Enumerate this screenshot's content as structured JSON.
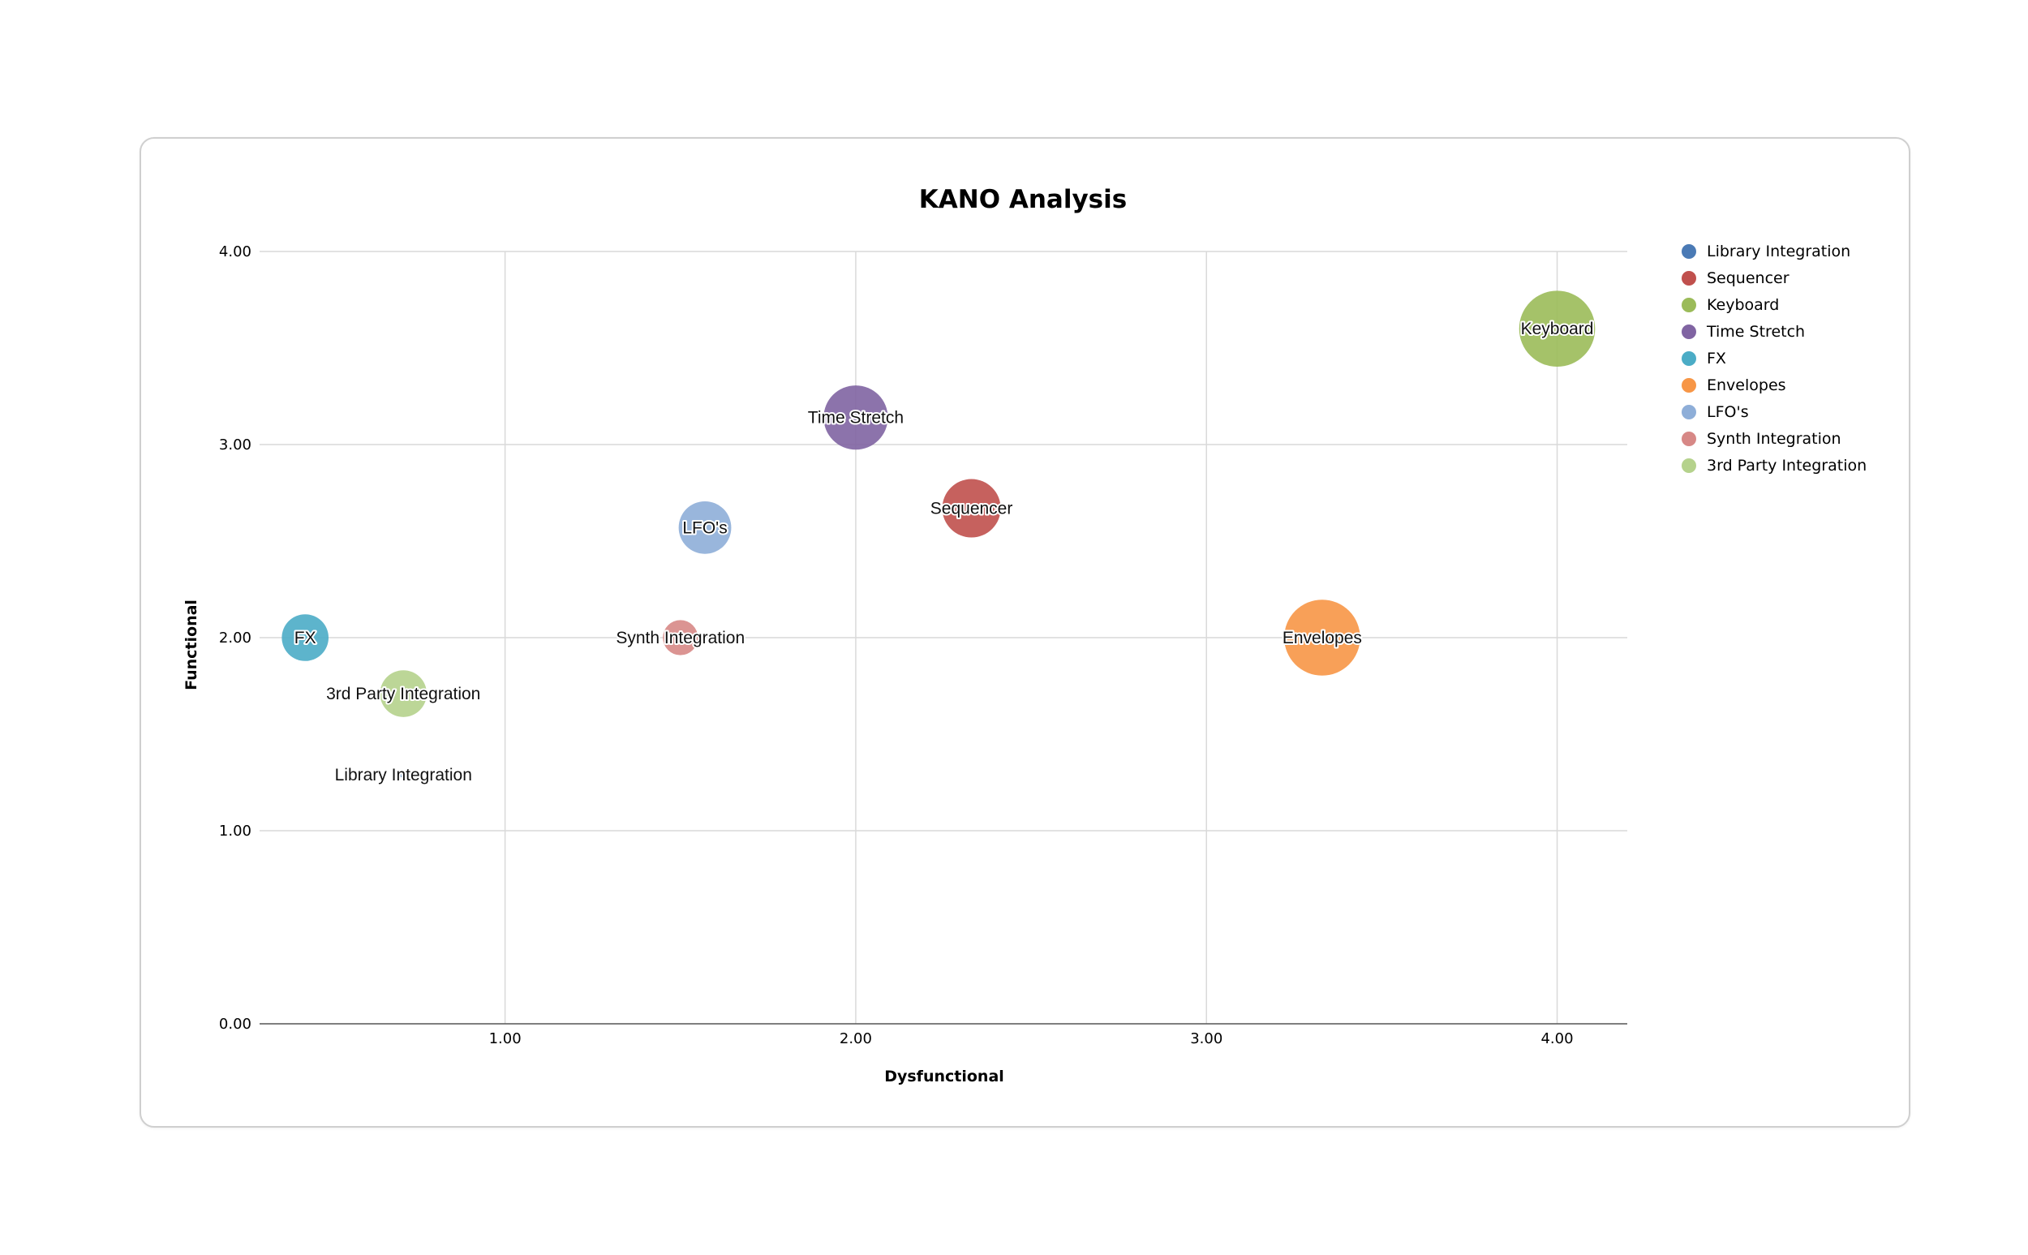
{
  "chart_data": {
    "type": "scatter",
    "title": "KANO Analysis",
    "xlabel": "Dysfunctional",
    "ylabel": "Functional",
    "xlim": [
      0.3,
      4.2
    ],
    "ylim": [
      0,
      4
    ],
    "x_ticks": [
      "1.00",
      "2.00",
      "3.00",
      "4.00"
    ],
    "y_ticks": [
      "0.00",
      "1.00",
      "2.00",
      "3.00",
      "4.00"
    ],
    "grid": true,
    "legend_position": "right",
    "series": [
      {
        "name": "Library Integration",
        "color": "#4a7ab5",
        "x": 0.71,
        "y": 1.29,
        "size": 0.05,
        "label": "Library Integration"
      },
      {
        "name": "Sequencer",
        "color": "#c0504d",
        "x": 2.33,
        "y": 2.67,
        "size": 0.5,
        "label": "Sequencer"
      },
      {
        "name": "Keyboard",
        "color": "#9bbb59",
        "x": 4.0,
        "y": 3.6,
        "size": 0.65,
        "label": "Keyboard"
      },
      {
        "name": "Time Stretch",
        "color": "#8064a2",
        "x": 2.0,
        "y": 3.14,
        "size": 0.55,
        "label": "Time Stretch"
      },
      {
        "name": "FX",
        "color": "#4bacc6",
        "x": 0.43,
        "y": 2.0,
        "size": 0.4,
        "label": "FX"
      },
      {
        "name": "Envelopes",
        "color": "#f79646",
        "x": 3.33,
        "y": 2.0,
        "size": 0.65,
        "label": "Envelopes"
      },
      {
        "name": "LFO's",
        "color": "#8eaed8",
        "x": 1.57,
        "y": 2.57,
        "size": 0.45,
        "label": "LFO's"
      },
      {
        "name": "Synth Integration",
        "color": "#d78886",
        "x": 1.5,
        "y": 2.0,
        "size": 0.3,
        "label": "Synth Integration"
      },
      {
        "name": "3rd Party Integration",
        "color": "#b5d28c",
        "x": 0.71,
        "y": 1.71,
        "size": 0.4,
        "label": "3rd Party Integration"
      }
    ]
  }
}
